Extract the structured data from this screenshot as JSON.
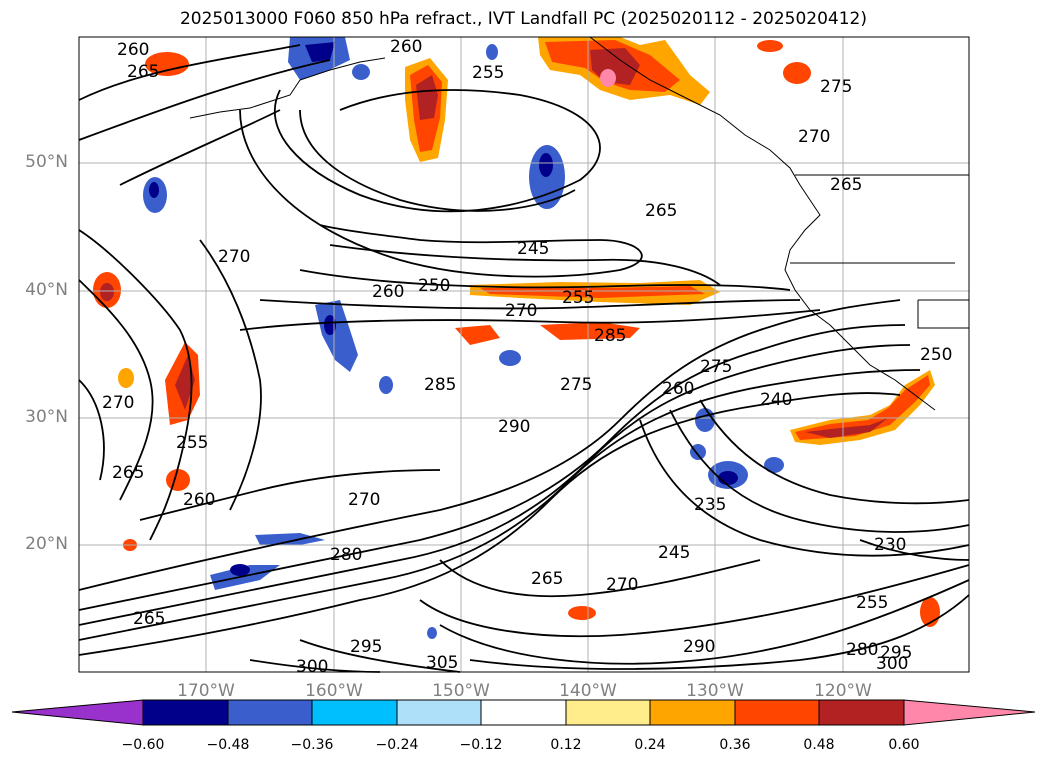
{
  "title": "2025013000 F060 850 hPa refract., IVT Landfall PC (2025020112 - 2025020412)",
  "lat_labels": [
    "50°N",
    "40°N",
    "30°N",
    "20°N"
  ],
  "lon_labels": [
    "170°W",
    "160°W",
    "150°W",
    "140°W",
    "130°W",
    "120°W"
  ],
  "contour_labels": [
    "260",
    "265",
    "260",
    "255",
    "275",
    "270",
    "270",
    "265",
    "265",
    "245",
    "270",
    "260",
    "250",
    "255",
    "270",
    "285",
    "250",
    "275",
    "285",
    "260",
    "240",
    "275",
    "290",
    "255",
    "265",
    "260",
    "270",
    "280",
    "235",
    "230",
    "245",
    "265",
    "270",
    "255",
    "265",
    "295",
    "290",
    "280",
    "295",
    "300",
    "300",
    "305"
  ],
  "colorbar": {
    "ticks": [
      "−0.60",
      "−0.48",
      "−0.36",
      "−0.24",
      "−0.12",
      "0.12",
      "0.24",
      "0.36",
      "0.48",
      "0.60"
    ],
    "colors": [
      "#9932cc",
      "#00008b",
      "#3a5fcd",
      "#00bfff",
      "#afe0fa",
      "#ffffff",
      "#ffec8b",
      "#ffa500",
      "#ff4500",
      "#b22222",
      "#ff88aa",
      "#ff88aa"
    ]
  }
}
